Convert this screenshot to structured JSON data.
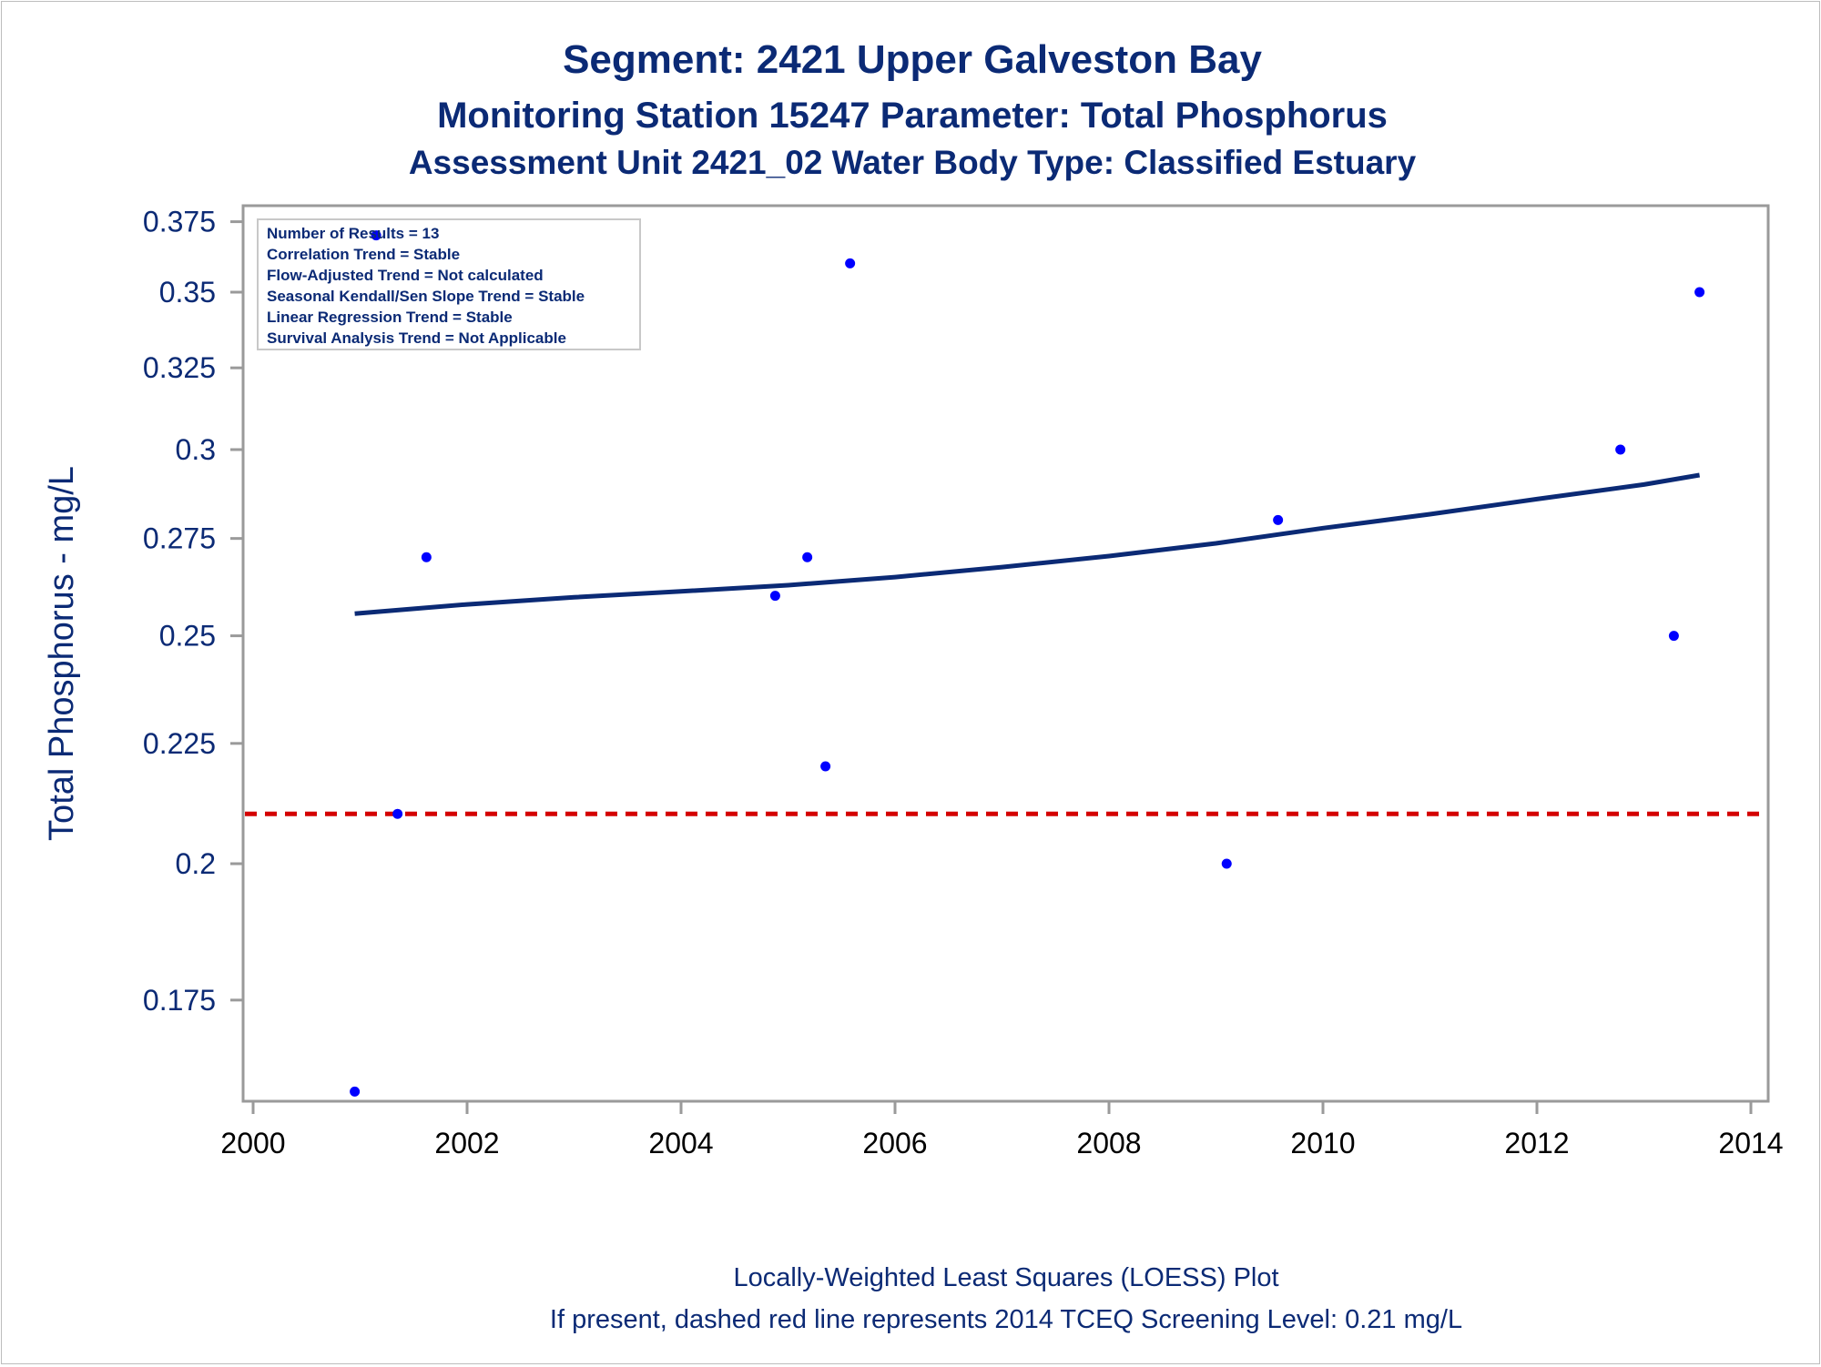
{
  "chart_data": {
    "type": "scatter",
    "title": "Segment: 2421  Upper Galveston Bay",
    "subtitle": "Monitoring Station 15247 Parameter: Total Phosphorus",
    "subtitle2": "Assessment Unit 2421_02   Water Body Type: Classified Estuary",
    "xlabel": "",
    "ylabel": "Total Phosphorus - mg/L",
    "xlim": [
      2000,
      2014
    ],
    "ylim": [
      0.155,
      0.377
    ],
    "y_scale": "log",
    "xticks": [
      "2000",
      "2002",
      "2004",
      "2006",
      "2008",
      "2010",
      "2012",
      "2014"
    ],
    "yticks": [
      {
        "value": 0.175,
        "label": "0.175"
      },
      {
        "value": 0.2,
        "label": "0.2"
      },
      {
        "value": 0.225,
        "label": "0.225"
      },
      {
        "value": 0.25,
        "label": "0.25"
      },
      {
        "value": 0.275,
        "label": "0.275"
      },
      {
        "value": 0.3,
        "label": "0.3"
      },
      {
        "value": 0.325,
        "label": "0.325"
      },
      {
        "value": 0.35,
        "label": "0.35"
      },
      {
        "value": 0.375,
        "label": "0.375"
      }
    ],
    "series": [
      {
        "kind": "scatter",
        "color": "#0000ff",
        "points": [
          {
            "x": 2000.95,
            "y": 0.16
          },
          {
            "x": 2001.15,
            "y": 0.37
          },
          {
            "x": 2001.35,
            "y": 0.21
          },
          {
            "x": 2001.62,
            "y": 0.27
          },
          {
            "x": 2004.88,
            "y": 0.26
          },
          {
            "x": 2005.18,
            "y": 0.27
          },
          {
            "x": 2005.35,
            "y": 0.22
          },
          {
            "x": 2005.58,
            "y": 0.36
          },
          {
            "x": 2009.1,
            "y": 0.2
          },
          {
            "x": 2009.58,
            "y": 0.28
          },
          {
            "x": 2012.78,
            "y": 0.3
          },
          {
            "x": 2013.28,
            "y": 0.25
          },
          {
            "x": 2013.52,
            "y": 0.35
          }
        ]
      },
      {
        "kind": "line",
        "color": "#0b2a75",
        "points": [
          {
            "x": 2000.95,
            "y": 0.2555
          },
          {
            "x": 2002.0,
            "y": 0.2578
          },
          {
            "x": 2003.0,
            "y": 0.2596
          },
          {
            "x": 2004.0,
            "y": 0.2611
          },
          {
            "x": 2005.0,
            "y": 0.2627
          },
          {
            "x": 2006.0,
            "y": 0.2648
          },
          {
            "x": 2007.0,
            "y": 0.2674
          },
          {
            "x": 2008.0,
            "y": 0.2703
          },
          {
            "x": 2009.0,
            "y": 0.2737
          },
          {
            "x": 2010.0,
            "y": 0.2778
          },
          {
            "x": 2011.0,
            "y": 0.2816
          },
          {
            "x": 2012.0,
            "y": 0.2858
          },
          {
            "x": 2013.0,
            "y": 0.2899
          },
          {
            "x": 2013.52,
            "y": 0.2926
          }
        ]
      },
      {
        "kind": "reference-line",
        "color": "#d40000",
        "style": "dashed",
        "y": 0.21
      }
    ],
    "grid": false,
    "legend": "none",
    "annotations": [
      "Number of Results = 13",
      "Correlation Trend = Stable",
      "Flow-Adjusted Trend = Not calculated",
      "Seasonal Kendall/Sen Slope Trend = Stable",
      "Linear Regression Trend = Stable",
      "Survival Analysis Trend = Not Applicable"
    ],
    "footnotes": [
      "Locally-Weighted Least Squares (LOESS) Plot",
      "If present, dashed red line represents 2014 TCEQ Screening Level: 0.21 mg/L"
    ]
  }
}
